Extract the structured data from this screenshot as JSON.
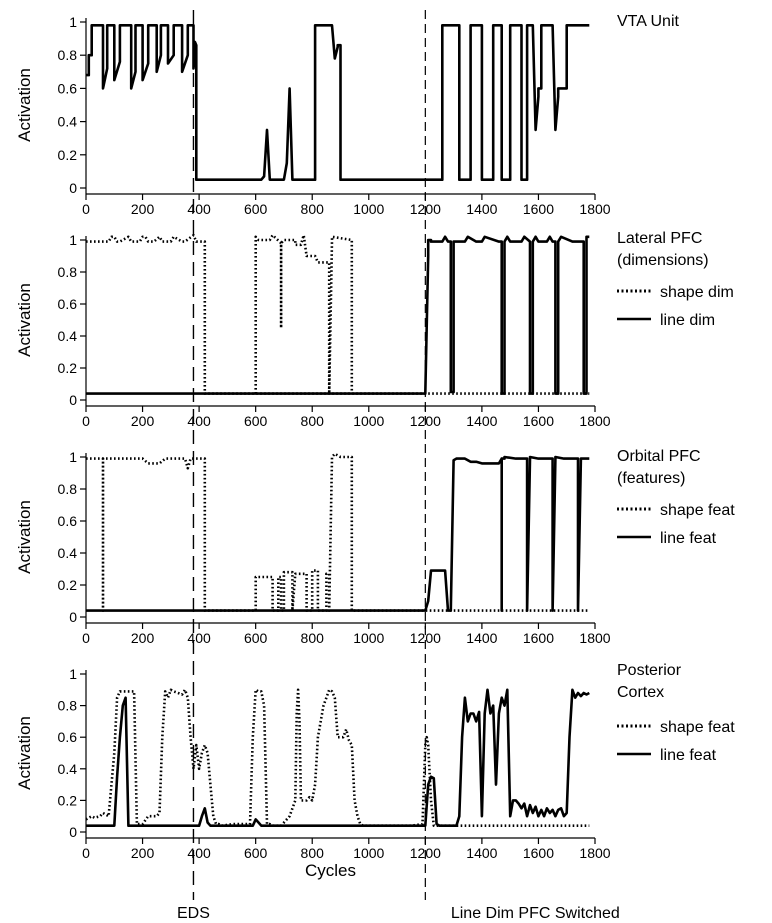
{
  "chart_data": [
    {
      "type": "line",
      "title": "VTA Unit",
      "ylabel": "Activation",
      "xlim": [
        0,
        1800
      ],
      "ylim": [
        0,
        1
      ],
      "xticks": [
        "0",
        "200",
        "400",
        "600",
        "800",
        "1000",
        "1200",
        "1400",
        "1600",
        "1800"
      ],
      "yticks": [
        "0",
        "0.2",
        "0.4",
        "0.6",
        "0.8",
        "1"
      ],
      "series": [
        {
          "style": "solid",
          "x": [
            0,
            10,
            10,
            20,
            20,
            30,
            30,
            60,
            60,
            75,
            75,
            100,
            100,
            120,
            120,
            160,
            160,
            175,
            175,
            200,
            200,
            220,
            220,
            250,
            250,
            265,
            265,
            290,
            290,
            310,
            310,
            340,
            340,
            360,
            360,
            380,
            380,
            385,
            385,
            390,
            390,
            400,
            400,
            620,
            630,
            640,
            650,
            650,
            690,
            700,
            710,
            720,
            730,
            730,
            800,
            810,
            810,
            860,
            860,
            870,
            880,
            890,
            890,
            900,
            900,
            1220,
            1220,
            1230,
            1230,
            1260,
            1260,
            1270,
            1270,
            1320,
            1320,
            1350,
            1350,
            1360,
            1360,
            1400,
            1400,
            1440,
            1440,
            1470,
            1470,
            1480,
            1480,
            1500,
            1500,
            1510,
            1510,
            1540,
            1540,
            1560,
            1560,
            1580,
            1590,
            1600,
            1600,
            1610,
            1610,
            1640,
            1640,
            1650,
            1660,
            1670,
            1670,
            1700,
            1700,
            1780
          ],
          "y": [
            0.68,
            0.68,
            0.8,
            0.8,
            0.98,
            0.98,
            0.98,
            0.98,
            0.6,
            0.72,
            0.98,
            0.98,
            0.65,
            0.76,
            0.98,
            0.98,
            0.6,
            0.7,
            0.98,
            0.98,
            0.65,
            0.75,
            0.98,
            0.98,
            0.7,
            0.8,
            0.98,
            0.98,
            0.75,
            0.8,
            0.98,
            0.98,
            0.7,
            0.8,
            0.98,
            0.98,
            0.72,
            0.8,
            0.88,
            0.86,
            0.05,
            0.05,
            0.05,
            0.05,
            0.07,
            0.35,
            0.05,
            0.05,
            0.05,
            0.05,
            0.15,
            0.6,
            0.05,
            0.05,
            0.05,
            0.05,
            0.98,
            0.98,
            0.98,
            0.98,
            0.78,
            0.85,
            0.86,
            0.86,
            0.05,
            0.05,
            0.05,
            0.05,
            0.05,
            0.05,
            0.98,
            0.98,
            0.98,
            0.98,
            0.05,
            0.05,
            0.05,
            0.05,
            0.98,
            0.98,
            0.05,
            0.05,
            0.98,
            0.98,
            0.05,
            0.05,
            0.05,
            0.05,
            0.98,
            0.98,
            0.98,
            0.98,
            0.05,
            0.05,
            0.98,
            0.98,
            0.35,
            0.55,
            0.6,
            0.6,
            0.98,
            0.98,
            0.98,
            0.98,
            0.35,
            0.55,
            0.6,
            0.6,
            0.98,
            0.98
          ]
        }
      ],
      "annotations": []
    },
    {
      "type": "line",
      "title": "Lateral PFC\n(dimensions)",
      "ylabel": "Activation",
      "xlim": [
        0,
        1800
      ],
      "ylim": [
        0,
        1
      ],
      "xticks": [
        "0",
        "200",
        "400",
        "600",
        "800",
        "1000",
        "1200",
        "1400",
        "1600",
        "1800"
      ],
      "yticks": [
        "0",
        "0.2",
        "0.4",
        "0.6",
        "0.8",
        "1"
      ],
      "series": [
        {
          "name": "shape dim",
          "style": "dotted",
          "x": [
            0,
            80,
            90,
            100,
            110,
            120,
            150,
            160,
            190,
            200,
            210,
            220,
            240,
            260,
            270,
            300,
            310,
            340,
            350,
            380,
            390,
            420,
            420,
            1200,
            1200,
            1780
          ],
          "y": [
            0.99,
            0.99,
            1.02,
            1.02,
            0.99,
            0.99,
            1.02,
            0.99,
            0.99,
            1.02,
            1.02,
            0.99,
            0.99,
            1.02,
            0.99,
            0.99,
            1.02,
            0.99,
            0.99,
            1.03,
            0.99,
            0.99,
            0.04,
            0.04,
            0.04,
            0.04
          ]
        },
        {
          "name": "shape dim",
          "style": "dotted",
          "x": [
            600,
            600,
            610,
            650,
            660,
            690,
            690,
            690,
            690,
            700,
            740,
            740,
            760,
            770,
            780,
            810,
            820,
            850,
            860,
            860,
            870,
            870,
            940,
            940
          ],
          "y": [
            0.04,
            1.02,
            1.0,
            1.0,
            1.03,
            0.98,
            0.45,
            0.98,
            0.98,
            1.0,
            1.0,
            0.97,
            0.97,
            1.03,
            0.9,
            0.9,
            0.86,
            0.86,
            0.86,
            0.04,
            1.0,
            1.02,
            1.0,
            0.04
          ]
        },
        {
          "name": "line dim",
          "style": "solid",
          "x": [
            0,
            1200,
            1200,
            1210,
            1210,
            1220,
            1220,
            1260,
            1270,
            1280,
            1290,
            1290,
            1300,
            1300,
            1340,
            1350,
            1380,
            1380,
            1400,
            1410,
            1460,
            1470,
            1470,
            1480,
            1480,
            1490,
            1500,
            1540,
            1550,
            1570,
            1570,
            1580,
            1580,
            1590,
            1600,
            1630,
            1640,
            1650,
            1660,
            1660,
            1670,
            1670,
            1680,
            1720,
            1730,
            1760,
            1760,
            1770,
            1770,
            1780
          ],
          "y": [
            0.04,
            0.04,
            0.04,
            0.9,
            1.0,
            1.0,
            0.99,
            0.99,
            1.02,
            0.99,
            0.99,
            0.05,
            0.05,
            0.99,
            0.99,
            1.02,
            0.99,
            0.99,
            0.99,
            1.02,
            0.99,
            0.99,
            0.04,
            0.04,
            0.99,
            1.02,
            0.99,
            0.99,
            1.02,
            0.99,
            0.04,
            0.04,
            0.99,
            1.02,
            0.99,
            0.99,
            1.02,
            0.99,
            0.99,
            0.04,
            0.04,
            0.99,
            1.02,
            0.99,
            0.99,
            0.99,
            0.04,
            0.04,
            1.02,
            1.02
          ]
        }
      ],
      "legend": [
        "shape dim",
        "line dim"
      ],
      "annotations": []
    },
    {
      "type": "line",
      "title": "Orbital PFC\n(features)",
      "ylabel": "Activation",
      "xlim": [
        0,
        1800
      ],
      "ylim": [
        0,
        1
      ],
      "xticks": [
        "0",
        "200",
        "400",
        "600",
        "800",
        "1000",
        "1200",
        "1400",
        "1600",
        "1800"
      ],
      "yticks": [
        "0",
        "0.2",
        "0.4",
        "0.6",
        "0.8",
        "1"
      ],
      "series": [
        {
          "name": "shape feat",
          "style": "dotted",
          "x": [
            0,
            60,
            60,
            60,
            200,
            220,
            260,
            280,
            350,
            360,
            370,
            380,
            420,
            420,
            600,
            600,
            660,
            660,
            680,
            680,
            690,
            690,
            700,
            700,
            730,
            730,
            740,
            780,
            780,
            800,
            800,
            820,
            820,
            850,
            850,
            860,
            860,
            870,
            880,
            900,
            940,
            940,
            1200,
            1210,
            1220,
            1780
          ],
          "y": [
            0.99,
            0.99,
            0.04,
            0.99,
            0.99,
            0.96,
            0.96,
            0.99,
            0.99,
            0.93,
            0.99,
            0.99,
            0.99,
            0.04,
            0.04,
            0.25,
            0.25,
            0.04,
            0.04,
            0.25,
            0.25,
            0.04,
            0.04,
            0.28,
            0.28,
            0.04,
            0.27,
            0.27,
            0.04,
            0.04,
            0.29,
            0.29,
            0.04,
            0.04,
            0.27,
            0.27,
            0.04,
            1.0,
            1.02,
            1.0,
            1.0,
            0.04,
            0.04,
            0.04,
            0.04,
            0.04
          ]
        },
        {
          "name": "line feat",
          "style": "solid",
          "x": [
            0,
            1200,
            1210,
            1220,
            1260,
            1270,
            1280,
            1290,
            1300,
            1310,
            1340,
            1360,
            1380,
            1400,
            1460,
            1470,
            1470,
            1470,
            1480,
            1480,
            1520,
            1560,
            1560,
            1560,
            1570,
            1570,
            1600,
            1640,
            1650,
            1650,
            1650,
            1660,
            1660,
            1690,
            1700,
            1720,
            1740,
            1740,
            1740,
            1750,
            1760,
            1780
          ],
          "y": [
            0.04,
            0.04,
            0.1,
            0.29,
            0.29,
            0.29,
            0.04,
            0.04,
            0.98,
            0.99,
            0.99,
            0.97,
            0.97,
            0.96,
            0.96,
            0.99,
            0.04,
            0.99,
            0.99,
            1.0,
            0.99,
            0.99,
            0.04,
            0.04,
            0.99,
            1.0,
            0.99,
            0.99,
            0.99,
            0.04,
            0.04,
            0.99,
            1.0,
            0.99,
            0.99,
            0.99,
            0.99,
            0.04,
            0.04,
            0.99,
            0.99,
            0.99
          ]
        }
      ],
      "legend": [
        "shape feat",
        "line feat"
      ],
      "annotations": []
    },
    {
      "type": "line",
      "title": "Posterior\nCortex",
      "ylabel": "Activation",
      "xlabel": "Cycles",
      "xlim": [
        0,
        1800
      ],
      "ylim": [
        0,
        1
      ],
      "xticks": [
        "0",
        "200",
        "400",
        "600",
        "800",
        "1000",
        "1200",
        "1400",
        "1600",
        "1800"
      ],
      "yticks": [
        "0",
        "0.2",
        "0.4",
        "0.6",
        "0.8",
        "1"
      ],
      "series": [
        {
          "name": "shape feat",
          "style": "dotted",
          "x": [
            0,
            20,
            30,
            50,
            60,
            80,
            100,
            110,
            120,
            130,
            160,
            170,
            180,
            200,
            220,
            240,
            250,
            260,
            270,
            280,
            290,
            300,
            310,
            340,
            350,
            360,
            370,
            380,
            390,
            400,
            410,
            420,
            430,
            440,
            450,
            460,
            470,
            480,
            520,
            560,
            580,
            590,
            600,
            610,
            620,
            630,
            640,
            650,
            660,
            690,
            720,
            740,
            745,
            750,
            755,
            760,
            770,
            780,
            790,
            800,
            810,
            820,
            830,
            840,
            850,
            860,
            870,
            880,
            890,
            900,
            910,
            920,
            930,
            940,
            950,
            960,
            970,
            980,
            1000,
            1100,
            1150,
            1190,
            1200,
            1205,
            1210,
            1220,
            1230,
            1780
          ],
          "y": [
            0.08,
            0.1,
            0.09,
            0.1,
            0.12,
            0.1,
            0.5,
            0.85,
            0.89,
            0.89,
            0.89,
            0.89,
            0.05,
            0.05,
            0.1,
            0.1,
            0.1,
            0.12,
            0.6,
            0.89,
            0.85,
            0.9,
            0.89,
            0.87,
            0.9,
            0.85,
            0.6,
            0.4,
            0.55,
            0.4,
            0.5,
            0.55,
            0.5,
            0.3,
            0.1,
            0.05,
            0.05,
            0.04,
            0.05,
            0.05,
            0.05,
            0.6,
            0.9,
            0.89,
            0.89,
            0.8,
            0.05,
            0.05,
            0.04,
            0.04,
            0.1,
            0.2,
            0.75,
            0.9,
            0.7,
            0.2,
            0.2,
            0.2,
            0.22,
            0.2,
            0.3,
            0.6,
            0.7,
            0.8,
            0.85,
            0.9,
            0.89,
            0.85,
            0.6,
            0.6,
            0.6,
            0.65,
            0.58,
            0.55,
            0.2,
            0.1,
            0.05,
            0.04,
            0.04,
            0.04,
            0.04,
            0.05,
            0.55,
            0.6,
            0.55,
            0.2,
            0.04,
            0.04
          ]
        },
        {
          "name": "line feat",
          "style": "solid",
          "x": [
            0,
            100,
            110,
            120,
            130,
            140,
            150,
            200,
            380,
            400,
            410,
            420,
            430,
            440,
            590,
            600,
            610,
            620,
            1200,
            1210,
            1220,
            1230,
            1240,
            1250,
            1310,
            1320,
            1330,
            1340,
            1350,
            1360,
            1370,
            1380,
            1390,
            1400,
            1410,
            1420,
            1430,
            1440,
            1450,
            1460,
            1470,
            1480,
            1490,
            1500,
            1510,
            1520,
            1530,
            1540,
            1550,
            1560,
            1570,
            1580,
            1590,
            1600,
            1610,
            1620,
            1630,
            1640,
            1650,
            1660,
            1670,
            1680,
            1690,
            1700,
            1710,
            1720,
            1730,
            1740,
            1750,
            1760,
            1770,
            1780
          ],
          "y": [
            0.04,
            0.04,
            0.35,
            0.6,
            0.8,
            0.85,
            0.04,
            0.04,
            0.04,
            0.04,
            0.1,
            0.15,
            0.06,
            0.04,
            0.04,
            0.08,
            0.06,
            0.04,
            0.04,
            0.3,
            0.35,
            0.34,
            0.05,
            0.04,
            0.04,
            0.1,
            0.6,
            0.85,
            0.7,
            0.75,
            0.75,
            0.7,
            0.76,
            0.1,
            0.75,
            0.9,
            0.75,
            0.8,
            0.3,
            0.75,
            0.85,
            0.8,
            0.9,
            0.1,
            0.2,
            0.2,
            0.18,
            0.15,
            0.18,
            0.1,
            0.17,
            0.12,
            0.16,
            0.1,
            0.14,
            0.1,
            0.15,
            0.12,
            0.14,
            0.1,
            0.14,
            0.15,
            0.1,
            0.12,
            0.6,
            0.9,
            0.85,
            0.88,
            0.86,
            0.88,
            0.87,
            0.88
          ]
        }
      ],
      "legend": [
        "shape feat",
        "line feat"
      ],
      "annotations": []
    }
  ],
  "legend_labels": {
    "shape_dim": "shape dim",
    "line_dim": "line dim",
    "shape_feat": "shape feat",
    "line_feat": "line feat"
  },
  "markers": {
    "eds": {
      "x": 380,
      "label": "EDS"
    },
    "switch": {
      "x": 1200,
      "label": "Line Dim PFC Switched"
    }
  }
}
